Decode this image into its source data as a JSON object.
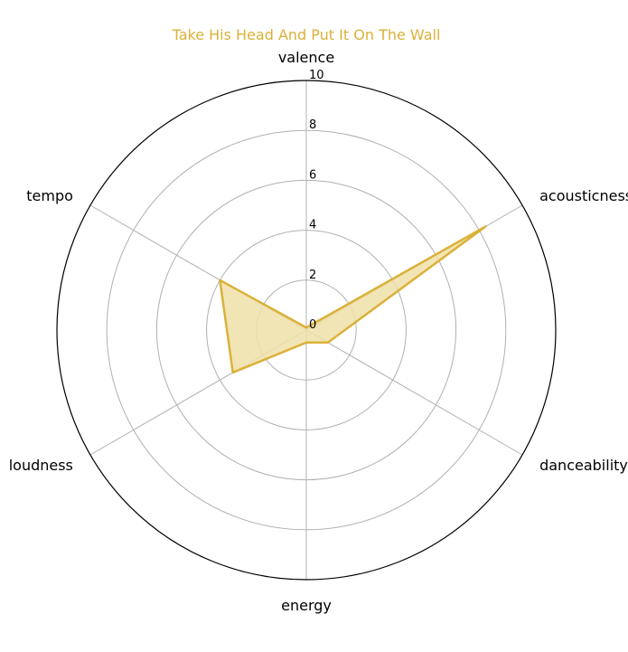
{
  "chart_data": {
    "type": "radar",
    "title": "Take His Head And Put It On The Wall",
    "axes": [
      "valence",
      "acousticness",
      "danceability",
      "energy",
      "loudness",
      "tempo"
    ],
    "rlim": [
      0,
      10
    ],
    "rticks": [
      "0",
      "2",
      "4",
      "6",
      "8",
      "10"
    ],
    "series": [
      {
        "values": [
          0.1,
          8.3,
          1.0,
          0.5,
          3.4,
          4.0
        ]
      }
    ],
    "colors": {
      "series": "#DBB13A",
      "fill": "#F0E0A8"
    },
    "grid": true
  }
}
